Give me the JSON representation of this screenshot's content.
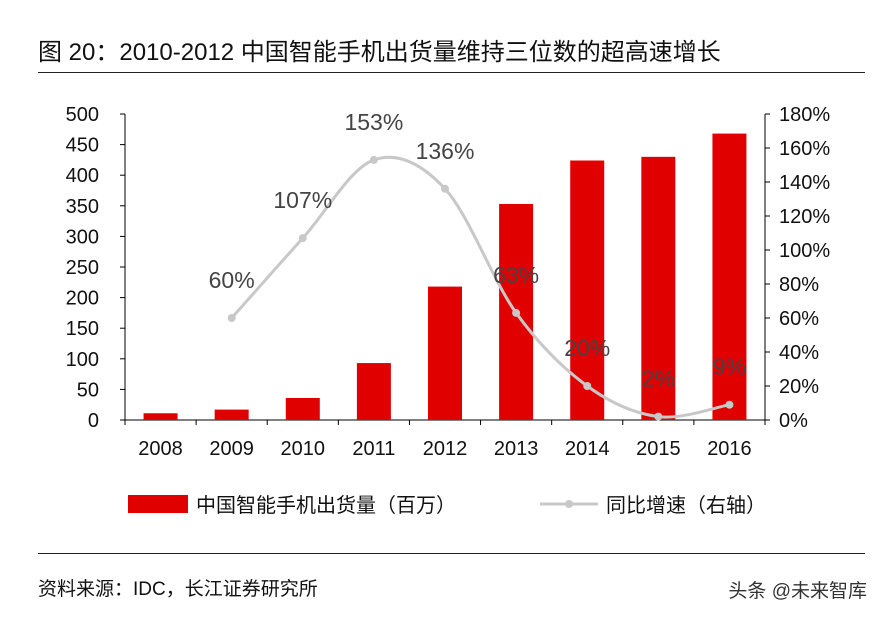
{
  "title": "图  20：2010-2012 中国智能手机出货量维持三位数的超高速增长",
  "source": "资料来源：IDC，长江证券研究所",
  "watermark": "头条 @未来智库",
  "chart_data": {
    "type": "bar+line",
    "categories": [
      "2008",
      "2009",
      "2010",
      "2011",
      "2012",
      "2013",
      "2014",
      "2015",
      "2016"
    ],
    "series": [
      {
        "name": "中国智能手机出货量（百万）",
        "type": "bar",
        "axis": "left",
        "color": "#E00000",
        "values": [
          11,
          17,
          36,
          93,
          218,
          353,
          424,
          430,
          468
        ]
      },
      {
        "name": "同比增速（右轴）",
        "type": "line",
        "axis": "right",
        "color": "#C8C8C8",
        "smooth": true,
        "values": [
          null,
          60,
          107,
          153,
          136,
          63,
          20,
          2,
          9
        ],
        "labels": [
          "",
          "60%",
          "107%",
          "153%",
          "136%",
          "63%",
          "20%",
          "2%",
          "9%"
        ]
      }
    ],
    "ylim": [
      0,
      500
    ],
    "yticks": [
      "0",
      "50",
      "100",
      "150",
      "200",
      "250",
      "300",
      "350",
      "400",
      "450",
      "500"
    ],
    "y2lim": [
      0,
      180
    ],
    "y2ticks": [
      "0%",
      "20%",
      "40%",
      "60%",
      "80%",
      "100%",
      "120%",
      "140%",
      "160%",
      "180%"
    ],
    "grid": false,
    "legend": "bottom"
  }
}
